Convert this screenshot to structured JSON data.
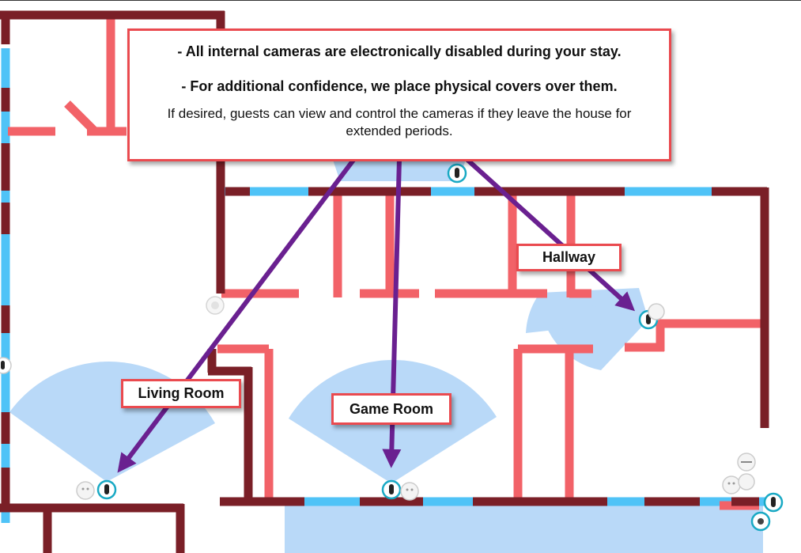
{
  "notice": {
    "line1": "- All internal cameras are electronically disabled during your stay.",
    "line2": "- For additional confidence, we place physical covers over them.",
    "line3": "If desired, guests can view and control the cameras if they leave the house for extended periods."
  },
  "labels": {
    "hallway": "Hallway",
    "living_room": "Living Room",
    "game_room": "Game Room"
  },
  "colors": {
    "exterior_wall": "#7a1f27",
    "interior_wall": "#f26268",
    "window": "#4fc3f7",
    "camera_view": "#b9d9f8",
    "arrow": "#6a2090",
    "callout_border": "#ea4a4f"
  }
}
